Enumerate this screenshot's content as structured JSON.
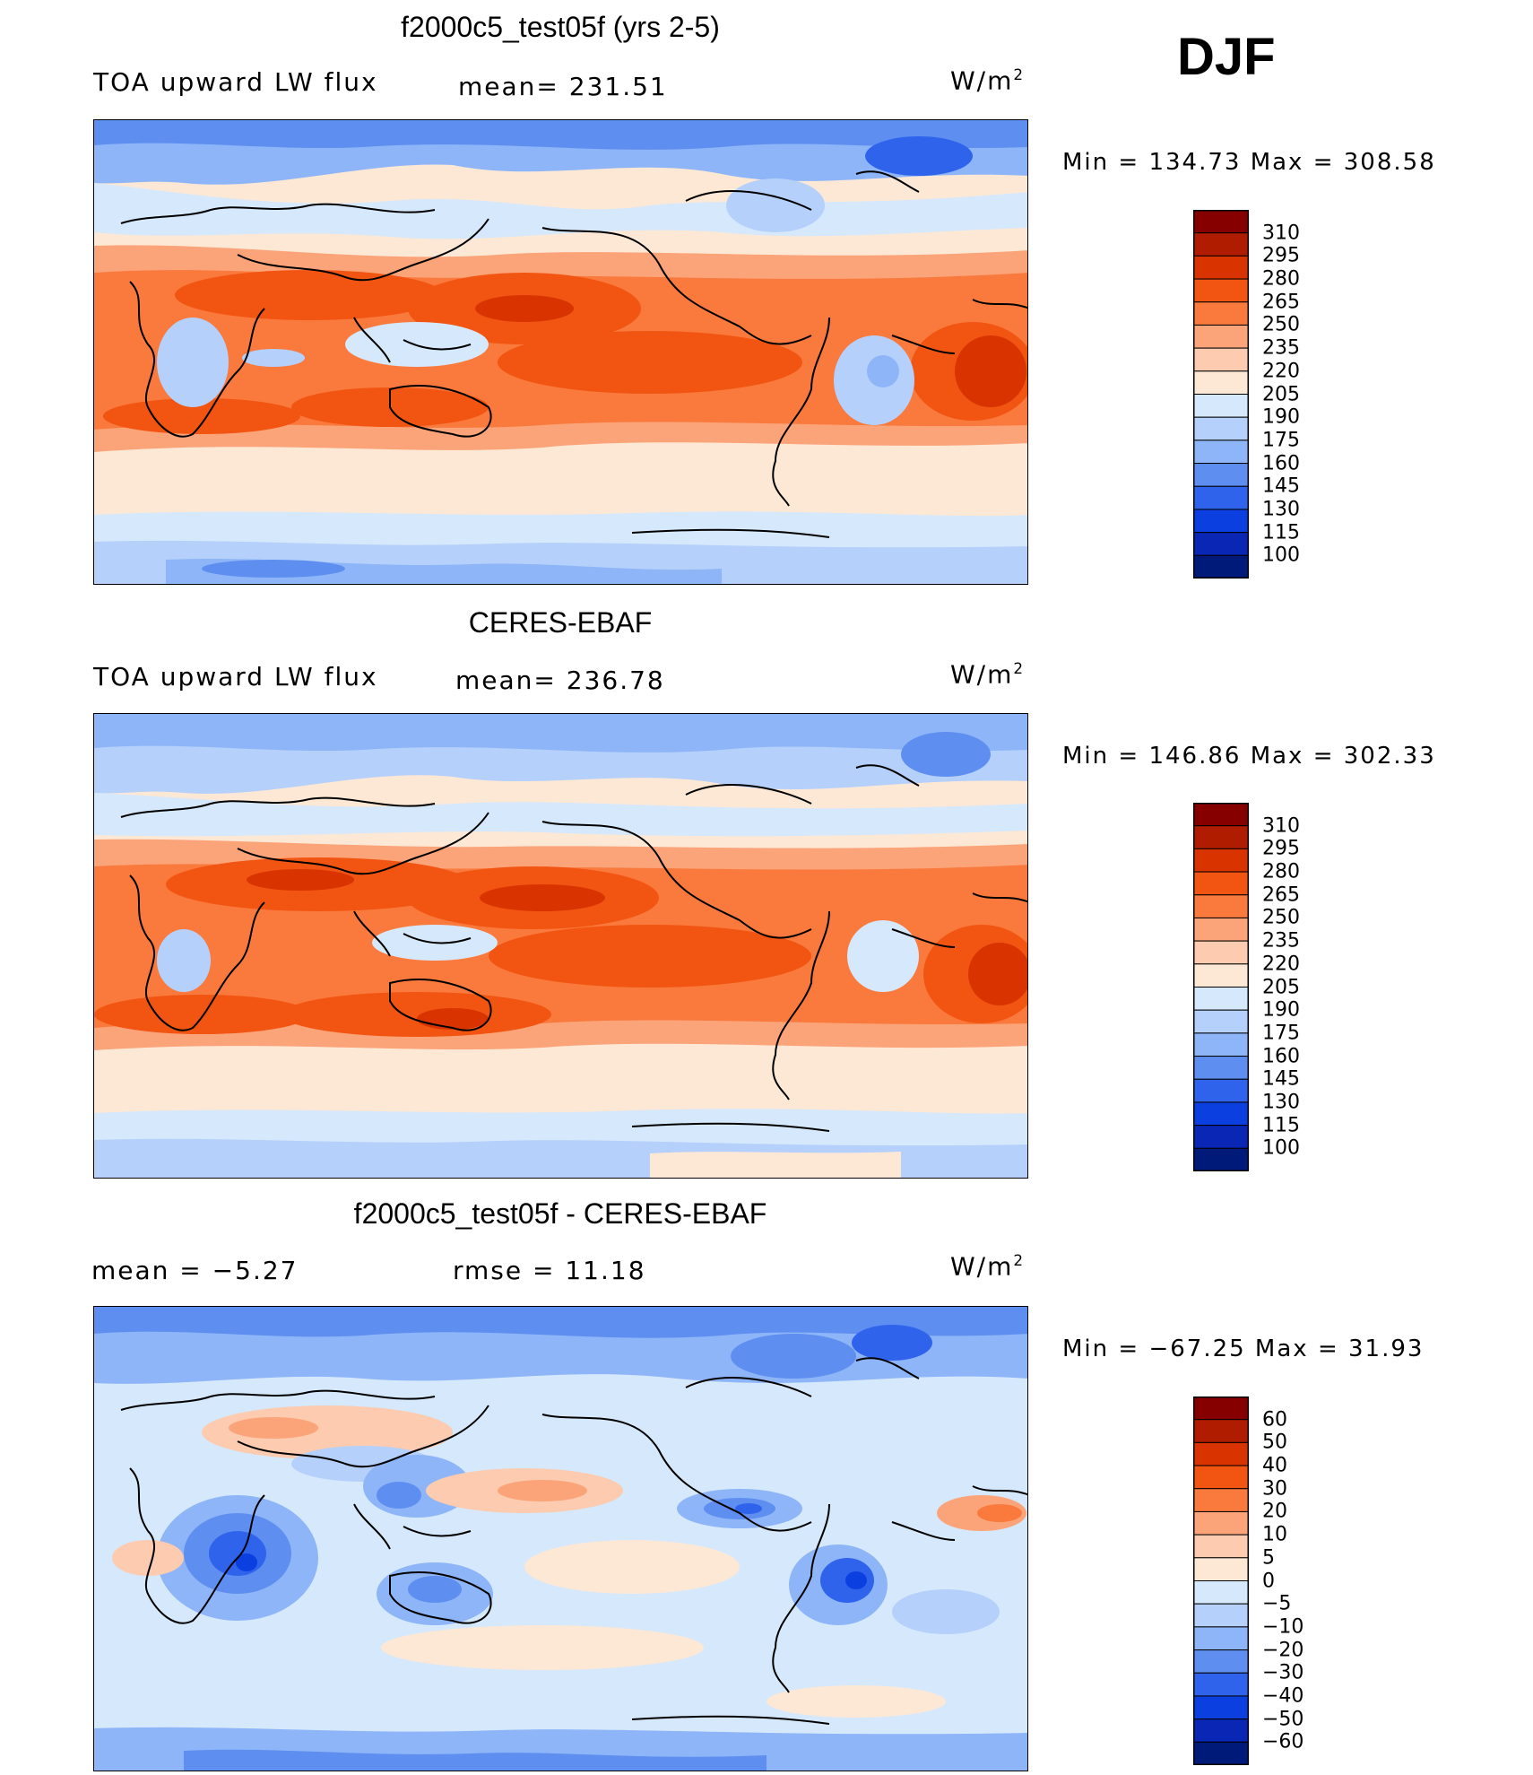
{
  "season": "DJF",
  "panels": [
    {
      "title": "f2000c5_test05f (yrs 2-5)",
      "left_label": "TOA upward LW flux",
      "center_label": "mean= 231.51",
      "units_base": "W/m",
      "units_exp": "2",
      "minmax": "Min = 134.73 Max = 308.58"
    },
    {
      "title": "CERES-EBAF",
      "left_label": "TOA upward LW flux",
      "center_label": "mean= 236.78",
      "units_base": "W/m",
      "units_exp": "2",
      "minmax": "Min = 146.86 Max = 302.33"
    },
    {
      "title": "f2000c5_test05f - CERES-EBAF",
      "left_label": "mean =   −5.27",
      "center_label": "rmse =   11.18",
      "units_base": "W/m",
      "units_exp": "2",
      "minmax": "Min = −67.25 Max =  31.93"
    }
  ],
  "colorbars": {
    "absolute": {
      "labels": [
        "310",
        "295",
        "280",
        "265",
        "250",
        "235",
        "220",
        "205",
        "190",
        "175",
        "160",
        "145",
        "130",
        "115",
        "100"
      ],
      "colors": [
        "#870000",
        "#b01c00",
        "#d93400",
        "#f25512",
        "#fa7a3d",
        "#fba47a",
        "#fccbb0",
        "#fde8d6",
        "#d6e8fb",
        "#b4d0fb",
        "#8eb5f7",
        "#5e8ff0",
        "#2f63ec",
        "#0c3fe0",
        "#0a26b4",
        "#001a7a"
      ]
    },
    "difference": {
      "labels": [
        "60",
        "50",
        "40",
        "30",
        "20",
        "10",
        "5",
        "0",
        "−5",
        "−10",
        "−20",
        "−30",
        "−40",
        "−50",
        "−60"
      ],
      "colors": [
        "#870000",
        "#b01c00",
        "#d93400",
        "#f25512",
        "#fa7a3d",
        "#fba47a",
        "#fccbb0",
        "#fde8d6",
        "#d6e8fb",
        "#b4d0fb",
        "#8eb5f7",
        "#5e8ff0",
        "#2f63ec",
        "#0c3fe0",
        "#0a26b4",
        "#001a7a"
      ]
    }
  }
}
